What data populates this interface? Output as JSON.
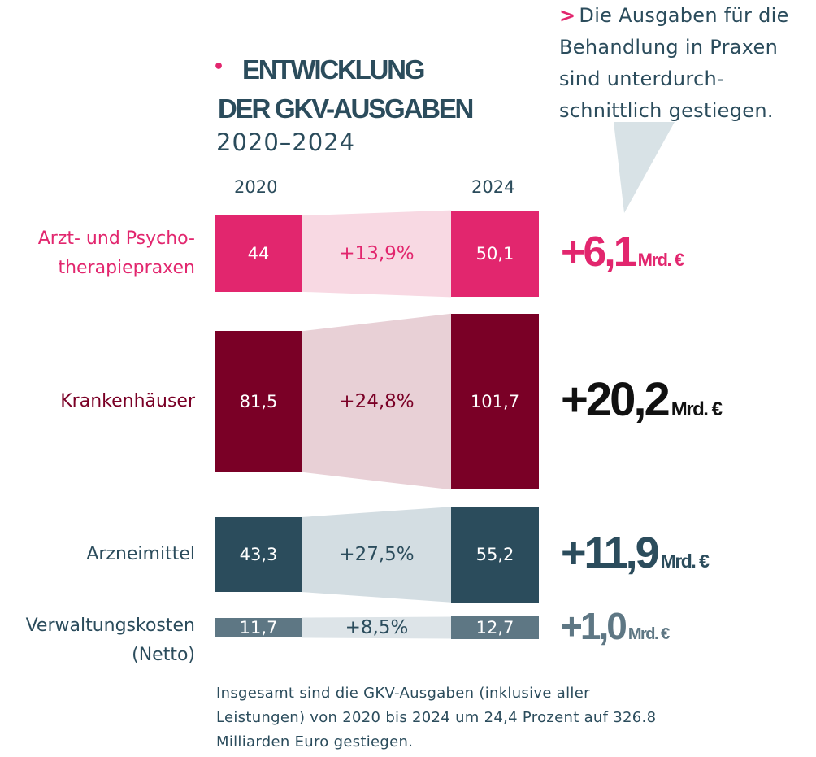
{
  "title": {
    "bullet": "•",
    "line1": "ENTWICKLUNG",
    "line2": "DER GKV-AUSGABEN",
    "years": "2020–2024"
  },
  "column_years": {
    "start": "2020",
    "end": "2024"
  },
  "callout": {
    "marker": ">",
    "text": "Die Ausgaben für die Behandlung in Praxen sind unterdurch-schnittlich gestiegen."
  },
  "colors": {
    "praxen": "#e2266e",
    "praxen_light": "#f8d9e3",
    "krankenhaus": "#7a0026",
    "krankenhaus_light": "#e8d0d6",
    "arznei": "#2b4c5c",
    "arznei_light": "#d3dde2",
    "verwaltung": "#5e7784",
    "verwaltung_light": "#dde4e8",
    "totals_black": "#111111"
  },
  "chart_data": {
    "type": "bar",
    "categories": [
      "Arzt- und Psychotherapiepraxen",
      "Krankenhäuser",
      "Arzneimittel",
      "Verwaltungskosten (Netto)"
    ],
    "series": [
      {
        "name": "2020",
        "values": [
          44,
          81.5,
          43.3,
          11.7
        ]
      },
      {
        "name": "2024",
        "values": [
          50.1,
          101.7,
          55.2,
          12.7
        ]
      }
    ],
    "change_pct": [
      13.9,
      24.8,
      27.5,
      8.5
    ],
    "change_abs": [
      6.1,
      20.2,
      11.9,
      1.0
    ],
    "rows": [
      {
        "label_line1": "Arzt- und Psycho-",
        "label_line2": "therapiepraxen",
        "v2020": "44",
        "v2024": "50,1",
        "pct": "+13,9%",
        "total": "+6,1",
        "unit": "Mrd. €"
      },
      {
        "label_line1": "Krankenhäuser",
        "label_line2": "",
        "v2020": "81,5",
        "v2024": "101,7",
        "pct": "+24,8%",
        "total": "+20,2",
        "unit": "Mrd. €"
      },
      {
        "label_line1": "Arzneimittel",
        "label_line2": "",
        "v2020": "43,3",
        "v2024": "55,2",
        "pct": "+27,5%",
        "total": "+11,9",
        "unit": "Mrd. €"
      },
      {
        "label_line1": "Verwaltungskosten",
        "label_line2": "(Netto)",
        "v2020": "11,7",
        "v2024": "12,7",
        "pct": "+8,5%",
        "total": "+1,0",
        "unit": "Mrd. €"
      }
    ]
  },
  "footnote": "Insgesamt sind die GKV-Ausgaben (inklusive aller Leistungen) von 2020 bis 2024 um 24,4 Prozent auf 326.8 Milliarden Euro gestiegen."
}
